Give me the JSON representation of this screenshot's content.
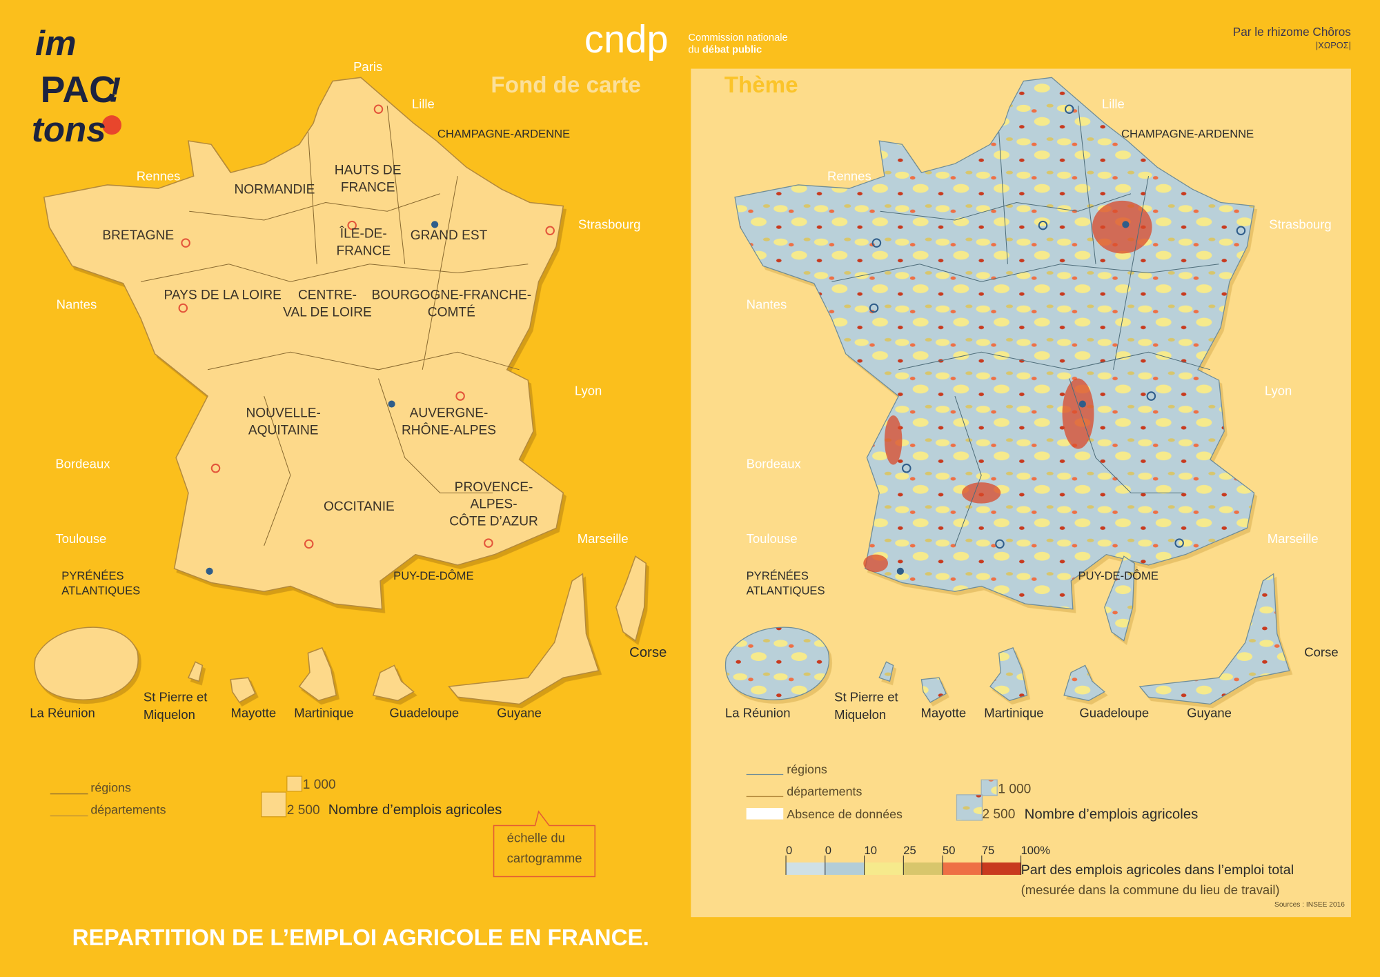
{
  "header": {
    "logo": [
      "im",
      "PAC",
      "tons",
      "!"
    ],
    "org_name": "cndp",
    "org_line1": "Commission nationale",
    "org_line2": [
      "du",
      "débat public"
    ],
    "credit": "Par le rhizome Chôros",
    "credit_sub": "|ΧΩΡΟΣ|"
  },
  "panels": [
    {
      "title": "Fond de carte"
    },
    {
      "title": "Thème"
    }
  ],
  "cities": [
    "Paris",
    "Lille",
    "Rennes",
    "Strasbourg",
    "Nantes",
    "Lyon",
    "Bordeaux",
    "Toulouse",
    "Marseille"
  ],
  "places": [
    [
      "CHAMPAGNE-ARDENNE"
    ],
    [
      "PYRÉNÉES",
      "ATLANTIQUES"
    ],
    [
      "PUY-DE-DÔME"
    ]
  ],
  "regions": [
    [
      "HAUTS DE",
      "FRANCE"
    ],
    [
      "NORMANDIE"
    ],
    [
      "BRETAGNE"
    ],
    [
      "ÎLE-DE-",
      "FRANCE"
    ],
    [
      "GRAND EST"
    ],
    [
      "PAYS DE LA LOIRE"
    ],
    [
      "CENTRE-",
      "VAL DE LOIRE"
    ],
    [
      "BOURGOGNE-FRANCHE-",
      "COMTÉ"
    ],
    [
      "NOUVELLE-",
      "AQUITAINE"
    ],
    [
      "AUVERGNE-",
      "RHÔNE-ALPES"
    ],
    [
      "OCCITANIE"
    ],
    [
      "PROVENCE-",
      "ALPES-",
      "CÔTE D’AZUR"
    ]
  ],
  "overseas": [
    [
      "Corse"
    ],
    [
      "La Réunion"
    ],
    [
      "St Pierre et",
      "Miquelon"
    ],
    [
      "Mayotte"
    ],
    [
      "Martinique"
    ],
    [
      "Guadeloupe"
    ],
    [
      "Guyane"
    ]
  ],
  "legend_left": {
    "lines": [
      "régions",
      "départements"
    ],
    "sizes": [
      "1 000",
      "2 500"
    ],
    "size_title": "Nombre d’emplois agricoles",
    "callout": [
      "échelle du",
      "cartogramme"
    ]
  },
  "legend_right": {
    "lines": [
      "régions",
      "départements"
    ],
    "no_data": "Absence de données",
    "sizes": [
      "1 000",
      "2 500"
    ],
    "size_title": "Nombre d’emplois agricoles",
    "scale_labels": [
      "0",
      "0",
      "10",
      "25",
      "50",
      "75",
      "100%"
    ],
    "scale_colors": [
      "#cfe0e6",
      "#b3cdd8",
      "#f6ea8c",
      "#d8c66c",
      "#ee6f45",
      "#c83a1f"
    ],
    "scale_title": "Part des emplois agricoles dans l’emploi total",
    "scale_note": "(mesurée dans la commune du lieu de travail)",
    "source": "Sources : INSEE 2016"
  },
  "footer": {
    "title": "REPARTITION DE L’EMPLOI AGRICOLE EN FRANCE."
  }
}
